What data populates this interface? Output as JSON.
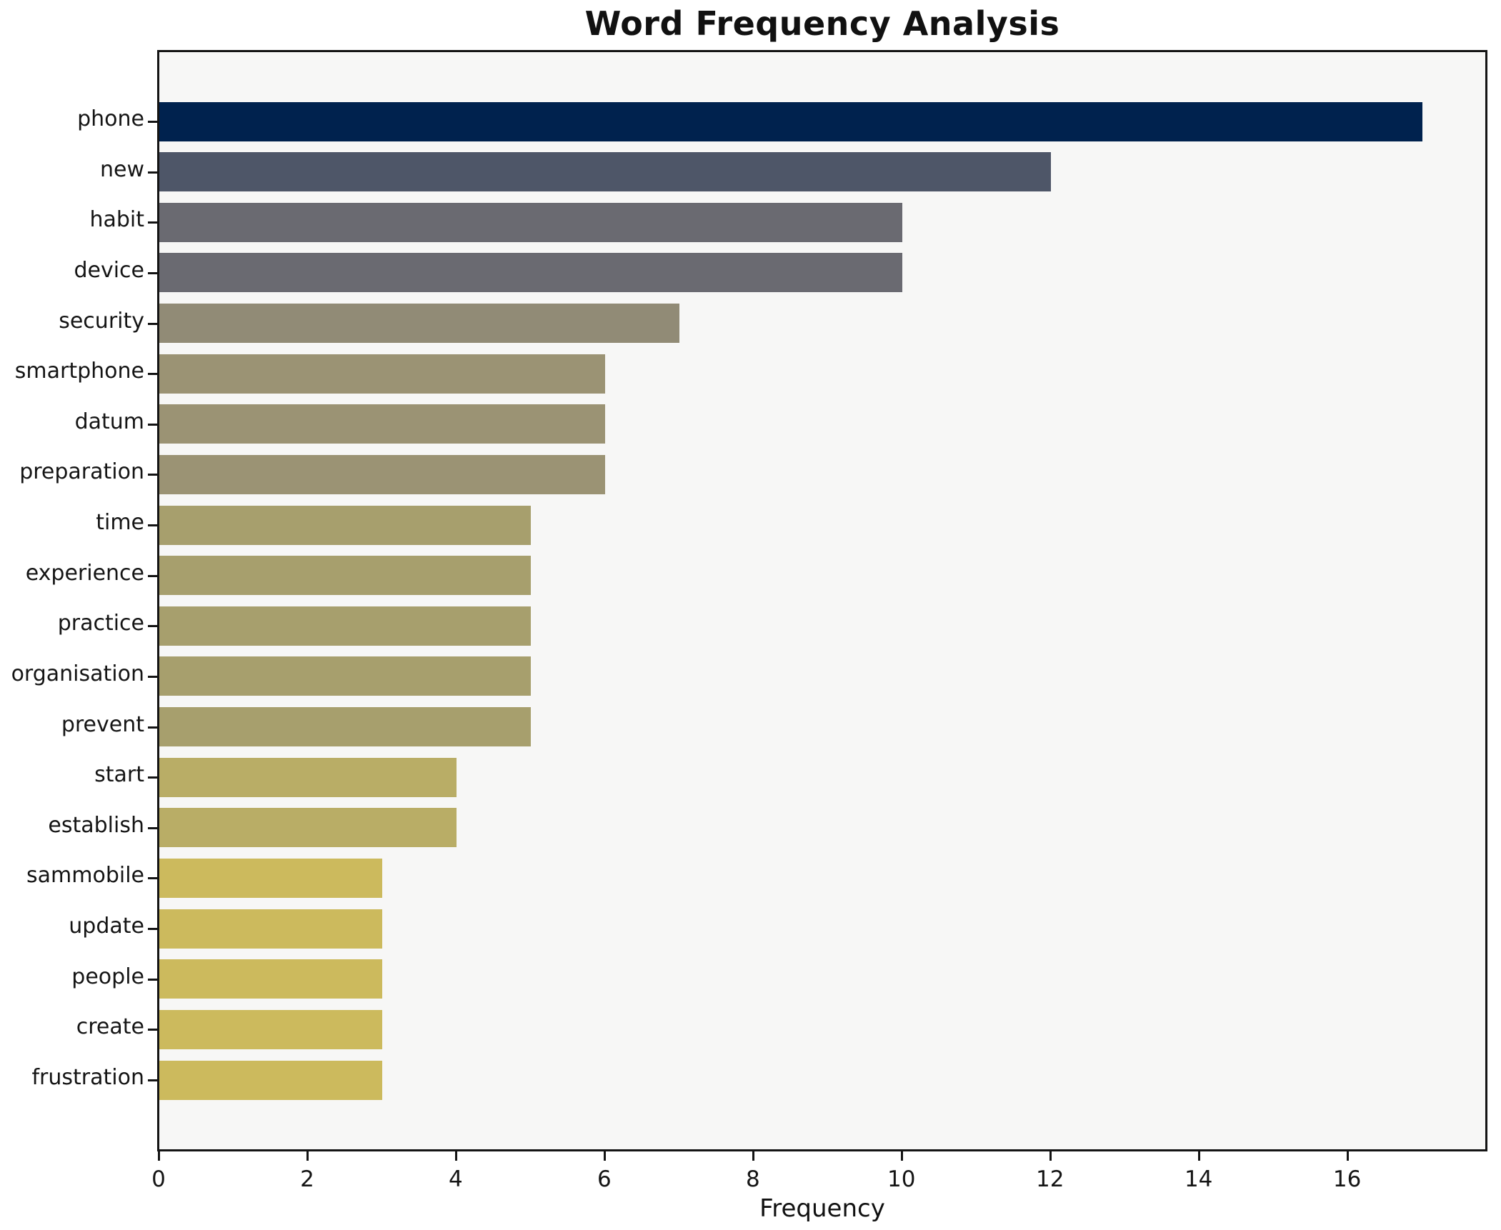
{
  "chart_data": {
    "type": "bar",
    "orientation": "horizontal",
    "title": "Word Frequency Analysis",
    "xlabel": "Frequency",
    "ylabel": "",
    "categories": [
      "phone",
      "new",
      "habit",
      "device",
      "security",
      "smartphone",
      "datum",
      "preparation",
      "time",
      "experience",
      "practice",
      "organisation",
      "prevent",
      "start",
      "establish",
      "sammobile",
      "update",
      "people",
      "create",
      "frustration"
    ],
    "values": [
      17,
      12,
      10,
      10,
      7,
      6,
      6,
      6,
      5,
      5,
      5,
      5,
      5,
      4,
      4,
      3,
      3,
      3,
      3,
      3
    ],
    "bar_colors": [
      "#00224e",
      "#4e5668",
      "#6a6a71",
      "#6a6a71",
      "#918b76",
      "#9b9374",
      "#9b9374",
      "#9b9374",
      "#a79f6d",
      "#a79f6d",
      "#a79f6d",
      "#a79f6d",
      "#a79f6d",
      "#b9ad66",
      "#b9ad66",
      "#ccba5d",
      "#ccba5d",
      "#ccba5d",
      "#ccba5d",
      "#ccba5d"
    ],
    "x_ticks": [
      0,
      2,
      4,
      6,
      8,
      10,
      12,
      14,
      16
    ],
    "xlim": [
      0,
      17.85
    ],
    "grid": false,
    "legend": null,
    "plot_background": "#f7f7f6",
    "spine_color": "#141414",
    "colormap": "cividis"
  }
}
